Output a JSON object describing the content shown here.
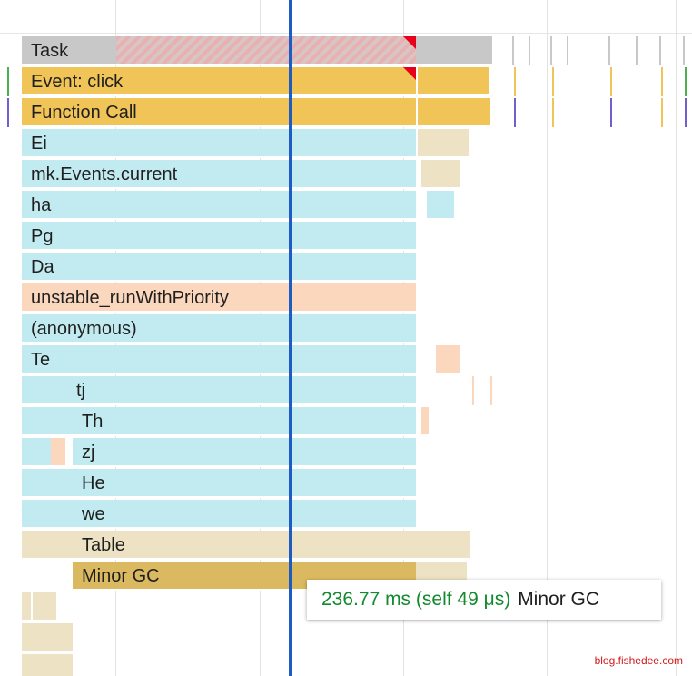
{
  "flame_chart": {
    "rows": [
      {
        "label": "Task"
      },
      {
        "label": "Event: click"
      },
      {
        "label": "Function Call"
      },
      {
        "label": "Ei"
      },
      {
        "label": "mk.Events.current"
      },
      {
        "label": "ha"
      },
      {
        "label": "Pg"
      },
      {
        "label": "Da"
      },
      {
        "label": "unstable_runWithPriority"
      },
      {
        "label": "(anonymous)"
      },
      {
        "label": "Te"
      },
      {
        "label": "tj"
      },
      {
        "label": "Th"
      },
      {
        "label": "zj"
      },
      {
        "label": "He"
      },
      {
        "label": "we"
      },
      {
        "label": "Table"
      },
      {
        "label": "Minor GC"
      }
    ]
  },
  "tooltip": {
    "time": "236.77 ms (self 49 μs)",
    "name": "Minor GC"
  },
  "watermark": "blog.fishedee.com",
  "colors": {
    "task": "#c8c8c8",
    "event": "#f0c456",
    "js_frame": "#c1ebf0",
    "scheduler": "#fad7bd",
    "table": "#ede3c4",
    "gc": "#dbb960",
    "cursor": "#1f5cc1",
    "tooltip_time": "#128a2e",
    "long_task_marker": "#e8001b"
  }
}
